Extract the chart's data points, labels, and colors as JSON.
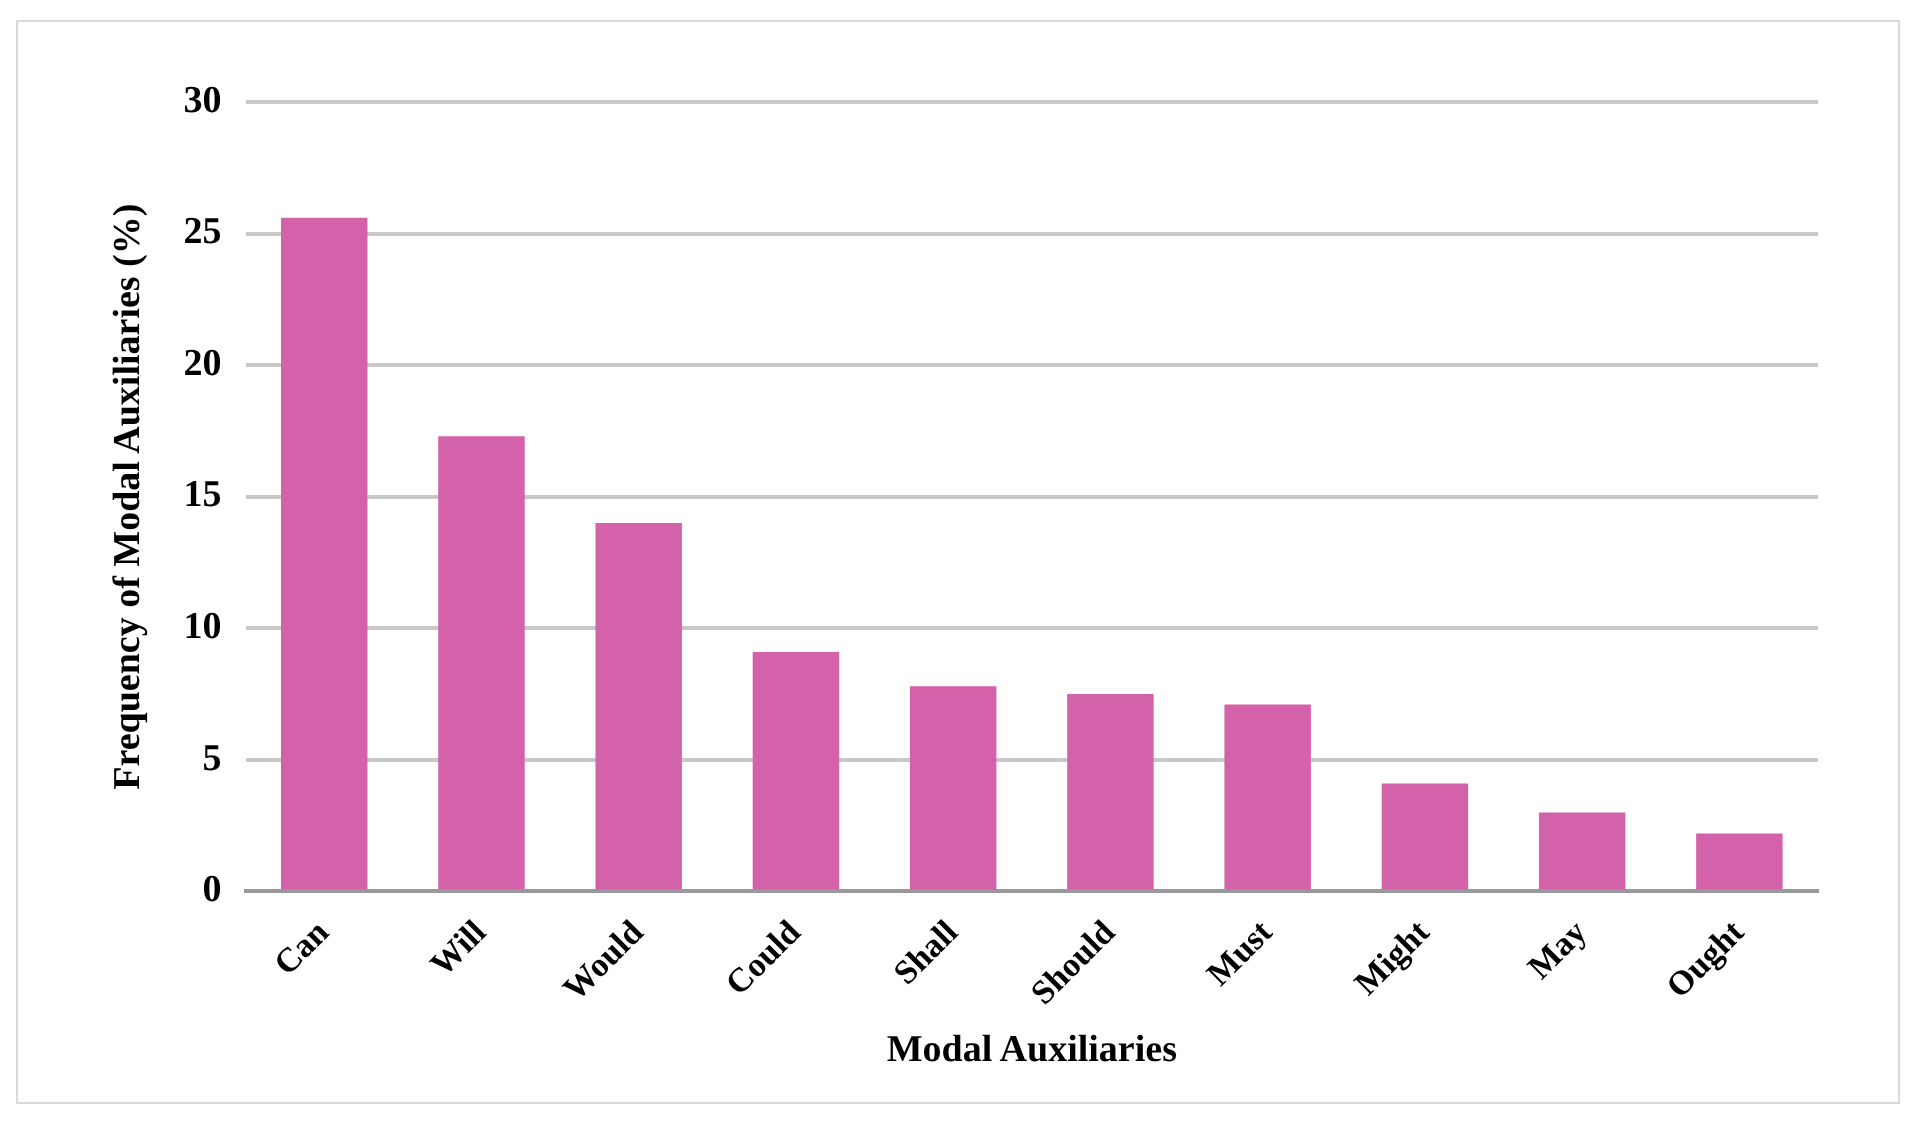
{
  "chart_data": {
    "type": "bar",
    "xlabel": "Modal Auxiliaries",
    "ylabel": "Frequency of Modal Auxiliaries (%)",
    "categories": [
      "Can",
      "Will",
      "Would",
      "Could",
      "Shall",
      "Should",
      "Must",
      "Might",
      "May",
      "Ought"
    ],
    "values": [
      25.6,
      17.3,
      14.0,
      9.1,
      7.8,
      7.5,
      7.1,
      4.1,
      3.0,
      2.2
    ],
    "color": "#d462aa",
    "ylim": [
      0,
      30
    ],
    "yticks": [
      0,
      5,
      10,
      15,
      20,
      25,
      30
    ],
    "grid": "y",
    "legend": false
  }
}
